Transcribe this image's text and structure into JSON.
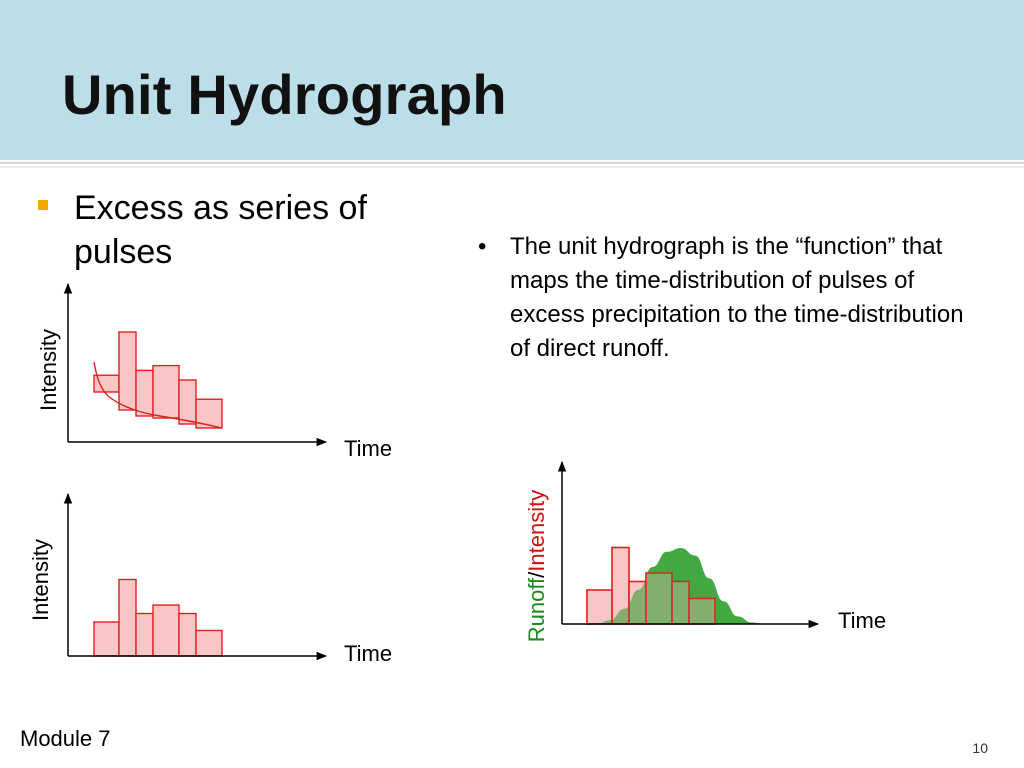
{
  "slide": {
    "title": "Unit Hydrograph",
    "bullet": "Excess as series of pulses",
    "note": "The unit hydrograph is the “function” that maps the time-distribution of pulses of excess precipitation to the time-distribution of direct runoff.",
    "note_marker": "•",
    "footer_left": "Module 7",
    "page_number": "10"
  },
  "chart1": {
    "ylabel": "Intensity",
    "xlabel": "Time",
    "pulse_heights": [
      0.55,
      1.0,
      0.6,
      0.65,
      0.5,
      0.3
    ]
  },
  "chart2": {
    "ylabel": "Intensity",
    "xlabel": "Time",
    "pulse_heights": [
      0.4,
      0.9,
      0.5,
      0.6,
      0.5,
      0.3
    ]
  },
  "chart3": {
    "ylabel_runoff": "Runoff",
    "ylabel_sep": "/",
    "ylabel_intensity": "Intensity",
    "xlabel": "Time",
    "pulse_heights": [
      0.4,
      0.9,
      0.5,
      0.6,
      0.5,
      0.3
    ],
    "runoff_shape": [
      0,
      0.05,
      0.2,
      0.45,
      0.75,
      0.95,
      1.0,
      0.9,
      0.6,
      0.3,
      0.1,
      0.02,
      0
    ]
  },
  "colors": {
    "title_band": "#bcdee9",
    "bullet": "#f2a900",
    "pulse_fill": "#f9c6c8",
    "pulse_stroke": "#e02020",
    "runoff_fill": "#2e9e2e",
    "runoff_label": "#1a8a1a",
    "intensity_label": "#d01010"
  }
}
